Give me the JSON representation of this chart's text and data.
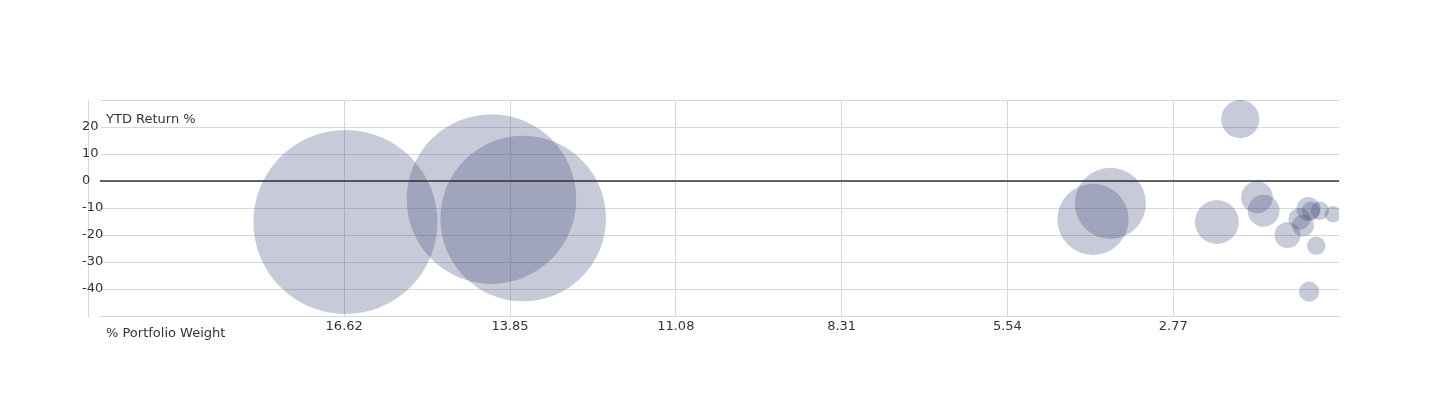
{
  "chart_data": {
    "type": "bubble",
    "xlabel": "% Portfolio Weight",
    "ylabel": "YTD Return %",
    "x": [
      16.6,
      14.16,
      13.63,
      3.82,
      4.11,
      1.65,
      2.04,
      1.37,
      1.26,
      0.51,
      0.47,
      0.32,
      0.1,
      0.66,
      0.6,
      0.86,
      0.38,
      0.5
    ],
    "series": [
      {
        "color": "#47507f",
        "values": [
          -15.2,
          -6.7,
          -13.9,
          -8.3,
          -14.2,
          22.9,
          -15.2,
          -6.0,
          -11.0,
          -10.4,
          -11.0,
          -11.0,
          -12.3,
          -14.0,
          -16.5,
          -20.0,
          -24.0,
          -41.0
        ],
        "sizes": [
          1,
          0.85,
          0.81,
          0.15,
          0.15,
          0.043,
          0.057,
          0.03,
          0.03,
          0.017,
          0.01,
          0.01,
          0.008,
          0.014,
          0.014,
          0.02,
          0.01,
          0.012
        ]
      }
    ],
    "xlim": [
      20.7,
      0
    ],
    "xticks": [
      16.62,
      13.85,
      11.08,
      8.31,
      5.54,
      2.77
    ],
    "ylim": [
      -50,
      30
    ],
    "yticks": [
      {
        "value": -50,
        "label": null
      },
      -40,
      -30,
      -20,
      -10,
      0,
      10,
      20,
      {
        "value": 30,
        "label": null
      }
    ],
    "ref_lines": [
      {
        "axis": "y",
        "value": 0,
        "color": "#333333"
      }
    ],
    "grid": true,
    "legend": false
  }
}
